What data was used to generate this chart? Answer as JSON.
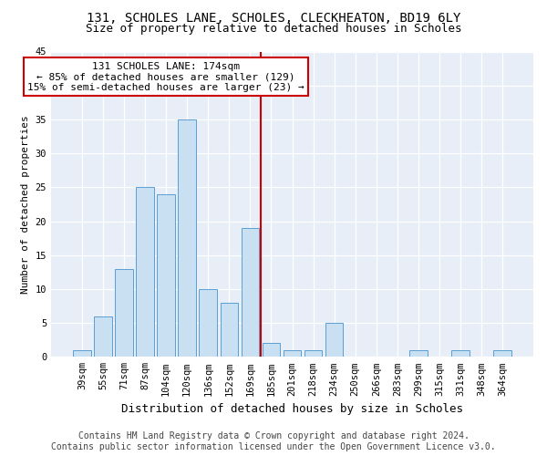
{
  "title1": "131, SCHOLES LANE, SCHOLES, CLECKHEATON, BD19 6LY",
  "title2": "Size of property relative to detached houses in Scholes",
  "xlabel": "Distribution of detached houses by size in Scholes",
  "ylabel": "Number of detached properties",
  "categories": [
    "39sqm",
    "55sqm",
    "71sqm",
    "87sqm",
    "104sqm",
    "120sqm",
    "136sqm",
    "152sqm",
    "169sqm",
    "185sqm",
    "201sqm",
    "218sqm",
    "234sqm",
    "250sqm",
    "266sqm",
    "283sqm",
    "299sqm",
    "315sqm",
    "331sqm",
    "348sqm",
    "364sqm"
  ],
  "values": [
    1,
    6,
    13,
    25,
    24,
    35,
    10,
    8,
    19,
    2,
    1,
    1,
    5,
    0,
    0,
    0,
    1,
    0,
    1,
    0,
    1
  ],
  "bar_color": "#c9dff2",
  "bar_edge_color": "#5a9fd4",
  "vline_x_index": 8,
  "vline_color": "#cc0000",
  "annotation_text": "131 SCHOLES LANE: 174sqm\n← 85% of detached houses are smaller (129)\n15% of semi-detached houses are larger (23) →",
  "annotation_box_color": "#ffffff",
  "annotation_box_edge": "#cc0000",
  "footer1": "Contains HM Land Registry data © Crown copyright and database right 2024.",
  "footer2": "Contains public sector information licensed under the Open Government Licence v3.0.",
  "background_color": "#e8eef8",
  "ylim": [
    0,
    45
  ],
  "yticks": [
    0,
    5,
    10,
    15,
    20,
    25,
    30,
    35,
    40,
    45
  ],
  "title1_fontsize": 10,
  "title2_fontsize": 9,
  "xlabel_fontsize": 9,
  "ylabel_fontsize": 8,
  "tick_fontsize": 7.5,
  "annot_fontsize": 8,
  "footer_fontsize": 7
}
